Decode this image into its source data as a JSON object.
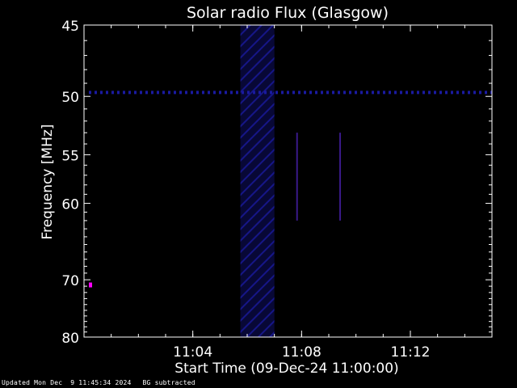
{
  "chart_data": {
    "type": "heatmap",
    "title": "Solar radio Flux (Glasgow)",
    "xlabel": "Start Time (09-Dec-24 11:00:00)",
    "ylabel": "Frequency [MHz]",
    "xlim": [
      "11:00:00",
      "11:15:00"
    ],
    "x_ticks": [
      "11:04",
      "11:08",
      "11:12"
    ],
    "ylim": [
      45,
      80
    ],
    "y_scale": "reciprocal",
    "y_ticks": [
      45,
      50,
      55,
      60,
      70,
      80
    ],
    "y_tick_labels": [
      "45",
      "50",
      "55",
      "60",
      "70",
      "80"
    ],
    "features": {
      "horizontal_band_mhz": 49.7,
      "vertical_band_start": "11:05:45",
      "vertical_band_end": "11:07:00",
      "spike_times": [
        "11:07:50",
        "11:09:25"
      ]
    },
    "colors": {
      "background": "#000000",
      "band": "#1a1aa0",
      "accent": "#ff00ff"
    }
  },
  "footer": {
    "updated": "Updated Mon Dec  9 11:45:34 2024",
    "note": "BG subtracted"
  }
}
